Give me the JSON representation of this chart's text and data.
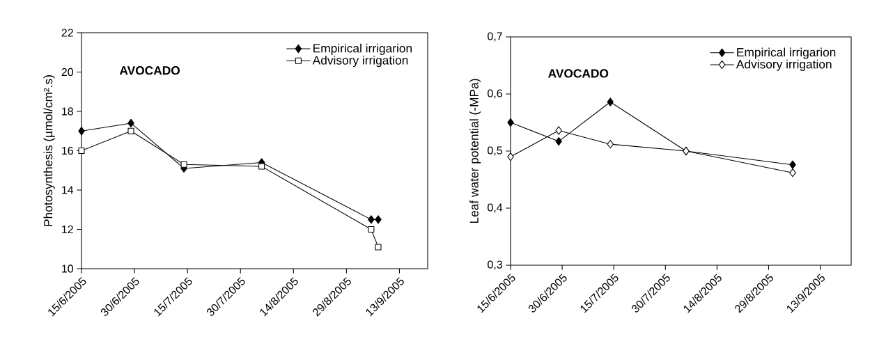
{
  "chart_data": [
    {
      "type": "line",
      "ylabel": "Photosynthesis (µmol/cm².s)",
      "annotations": [
        "AVOCADO"
      ],
      "legend": "top right",
      "xlim": [
        "2005-06-15",
        "2005-09-21"
      ],
      "xticks": [
        {
          "value": "2005-06-15",
          "label": "15/6/2005"
        },
        {
          "value": "2005-06-30",
          "label": "30/6/2005"
        },
        {
          "value": "2005-07-15",
          "label": "15/7/2005"
        },
        {
          "value": "2005-07-30",
          "label": "30/7/2005"
        },
        {
          "value": "2005-08-14",
          "label": "14/8/2005"
        },
        {
          "value": "2005-08-29",
          "label": "29/8/2005"
        },
        {
          "value": "2005-09-13",
          "label": "13/9/2005"
        }
      ],
      "ylim": [
        10,
        22
      ],
      "yticks": [
        10,
        12,
        14,
        16,
        18,
        20,
        22
      ],
      "series": [
        {
          "name": "Empirical irrigarion",
          "color": "#000000",
          "marker": "diamond",
          "x": [
            "2005-06-15",
            "2005-06-29",
            "2005-07-14",
            "2005-08-05",
            "2005-09-05",
            "2005-09-07"
          ],
          "values": [
            17.0,
            17.4,
            15.1,
            15.4,
            12.5,
            12.5
          ]
        },
        {
          "name": "Advisory irrigation",
          "color": "#ffffff",
          "marker": "square",
          "x": [
            "2005-06-15",
            "2005-06-29",
            "2005-07-14",
            "2005-08-05",
            "2005-09-05",
            "2005-09-07"
          ],
          "values": [
            16.0,
            17.0,
            15.3,
            15.2,
            12.0,
            11.1
          ]
        }
      ]
    },
    {
      "type": "line",
      "ylabel": "Leaf water potential (-MPa)",
      "annotations": [
        "AVOCADO"
      ],
      "legend": "top right",
      "xlim": [
        "2005-06-15",
        "2005-09-22"
      ],
      "xticks": [
        {
          "value": "2005-06-15",
          "label": "15/6/2005"
        },
        {
          "value": "2005-06-30",
          "label": "30/6/2005"
        },
        {
          "value": "2005-07-15",
          "label": "15/7/2005"
        },
        {
          "value": "2005-07-30",
          "label": "30/7/2005"
        },
        {
          "value": "2005-08-14",
          "label": "14/8/2005"
        },
        {
          "value": "2005-08-29",
          "label": "29/8/2005"
        },
        {
          "value": "2005-09-13",
          "label": "13/9/2005"
        }
      ],
      "ylim": [
        0.3,
        0.7
      ],
      "yticks": [
        {
          "value": 0.3,
          "label": "0,3"
        },
        {
          "value": 0.4,
          "label": "0,4"
        },
        {
          "value": 0.5,
          "label": "0,5"
        },
        {
          "value": 0.6,
          "label": "0,6"
        },
        {
          "value": 0.7,
          "label": "0,7"
        }
      ],
      "series": [
        {
          "name": "Empirical irrigarion",
          "color": "#000000",
          "marker": "diamond",
          "x": [
            "2005-06-15",
            "2005-06-29",
            "2005-07-14",
            "2005-08-05",
            "2005-09-05"
          ],
          "values": [
            0.55,
            0.517,
            0.586,
            0.5,
            0.476
          ]
        },
        {
          "name": "Advisory irrigation",
          "color": "#ffffff",
          "marker": "diamond",
          "x": [
            "2005-06-15",
            "2005-06-29",
            "2005-07-14",
            "2005-08-05",
            "2005-09-05"
          ],
          "values": [
            0.49,
            0.536,
            0.512,
            0.5,
            0.462
          ]
        }
      ]
    }
  ]
}
